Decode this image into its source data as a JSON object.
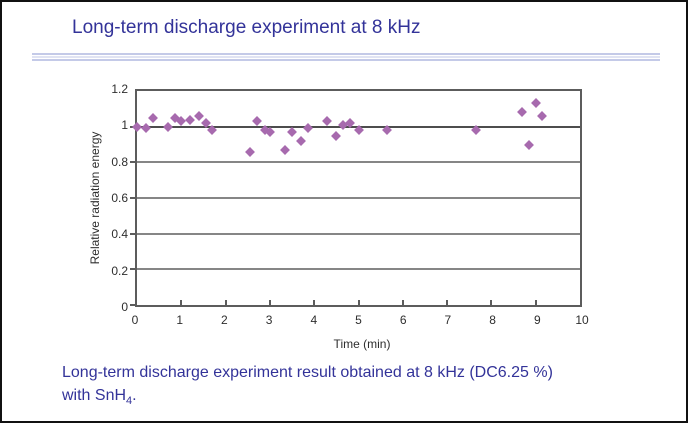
{
  "page": {
    "title": "Long-term discharge experiment at 8 kHz",
    "caption_line1": "Long-term discharge experiment result obtained at 8 kHz (DC6.25 %)",
    "caption_line2_prefix": "with SnH",
    "caption_line2_sub": "4",
    "caption_line2_suffix": "."
  },
  "colors": {
    "title_text": "#333399",
    "caption_text": "#333399",
    "separator_line": "#c4cae8",
    "marker": "#a76aae",
    "gridline": "#868686",
    "unity_gridline": "#4d4d4d",
    "axis_border": "#5c5c5c",
    "axis_text": "#2e2e2e"
  },
  "chart_data": {
    "type": "scatter",
    "title": "",
    "xlabel": "Time (min)",
    "ylabel": "Relative radiation energy",
    "xlim": [
      0,
      10
    ],
    "ylim": [
      0,
      1.2
    ],
    "x_ticks": [
      0,
      1,
      2,
      3,
      4,
      5,
      6,
      7,
      8,
      9,
      10
    ],
    "x_tick_labels": [
      "0",
      "1",
      "2",
      "3",
      "4",
      "5",
      "6",
      "7",
      "8",
      "9",
      "10"
    ],
    "y_ticks": [
      0,
      0.2,
      0.4,
      0.6,
      0.8,
      1,
      1.2
    ],
    "y_tick_labels": [
      "0",
      "0.2",
      "0.4",
      "0.6",
      "0.8",
      "1",
      "1.2"
    ],
    "grid": "horizontal-only",
    "legend": "none",
    "marker_shape": "diamond",
    "points": [
      [
        0.0,
        1.0
      ],
      [
        0.2,
        0.99
      ],
      [
        0.35,
        1.05
      ],
      [
        0.7,
        1.0
      ],
      [
        0.85,
        1.05
      ],
      [
        1.0,
        1.03
      ],
      [
        1.2,
        1.04
      ],
      [
        1.4,
        1.06
      ],
      [
        1.55,
        1.02
      ],
      [
        1.7,
        0.98
      ],
      [
        2.55,
        0.86
      ],
      [
        2.7,
        1.03
      ],
      [
        2.9,
        0.98
      ],
      [
        3.0,
        0.97
      ],
      [
        3.35,
        0.87
      ],
      [
        3.5,
        0.97
      ],
      [
        3.7,
        0.92
      ],
      [
        3.85,
        0.99
      ],
      [
        4.3,
        1.03
      ],
      [
        4.5,
        0.95
      ],
      [
        4.65,
        1.01
      ],
      [
        4.8,
        1.02
      ],
      [
        5.0,
        0.98
      ],
      [
        5.65,
        0.98
      ],
      [
        7.65,
        0.98
      ],
      [
        8.7,
        1.08
      ],
      [
        8.85,
        0.9
      ],
      [
        9.0,
        1.13
      ],
      [
        9.15,
        1.06
      ]
    ]
  }
}
